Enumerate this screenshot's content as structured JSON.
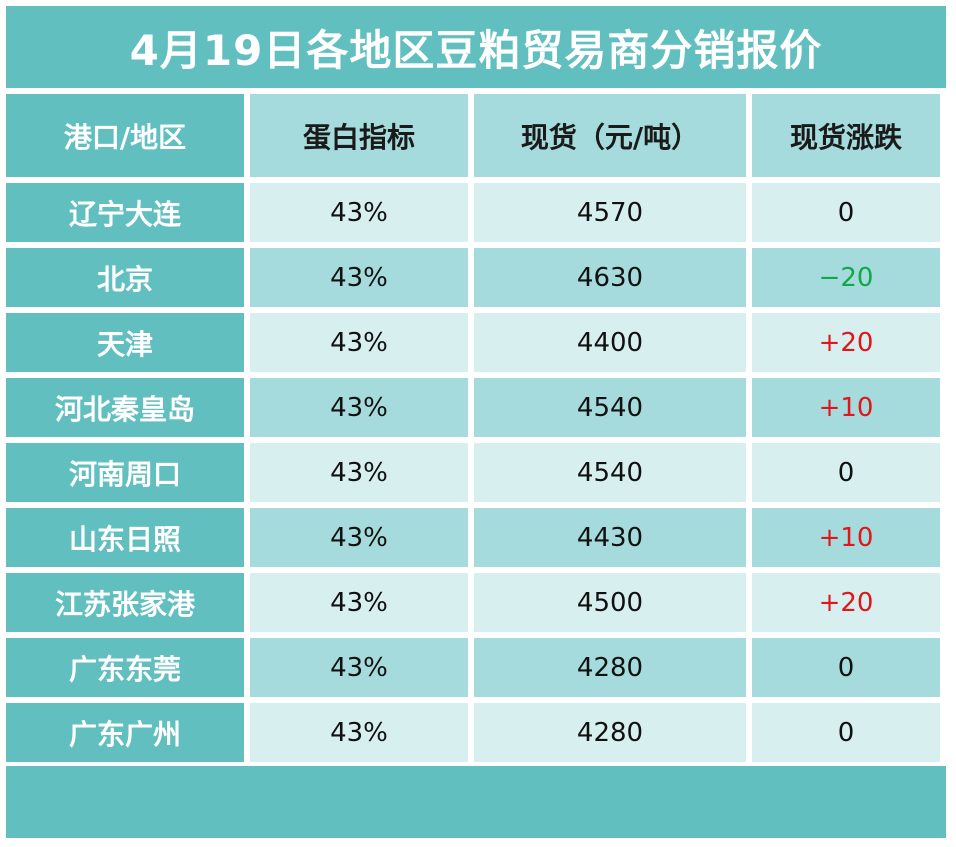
{
  "title": "4月19日各地区豆粕贸易商分销报价",
  "headers": [
    "港口/地区",
    "蛋白指标",
    "现货（元/吨）",
    "现货涨跌"
  ],
  "rows": [
    {
      "region": "辽宁大连",
      "protein": "43%",
      "price": "4570",
      "change": "0",
      "direction": "zero"
    },
    {
      "region": "北京",
      "protein": "43%",
      "price": "4630",
      "change": "−20",
      "direction": "down"
    },
    {
      "region": "天津",
      "protein": "43%",
      "price": "4400",
      "change": "+20",
      "direction": "up"
    },
    {
      "region": "河北秦皇岛",
      "protein": "43%",
      "price": "4540",
      "change": "+10",
      "direction": "up"
    },
    {
      "region": "河南周口",
      "protein": "43%",
      "price": "4540",
      "change": "0",
      "direction": "zero"
    },
    {
      "region": "山东日照",
      "protein": "43%",
      "price": "4430",
      "change": "+10",
      "direction": "up"
    },
    {
      "region": "江苏张家港",
      "protein": "43%",
      "price": "4500",
      "change": "+20",
      "direction": "up"
    },
    {
      "region": "广东东莞",
      "protein": "43%",
      "price": "4280",
      "change": "0",
      "direction": "zero"
    },
    {
      "region": "广东广州",
      "protein": "43%",
      "price": "4280",
      "change": "0",
      "direction": "zero"
    }
  ],
  "colors": {
    "teal": "#62bfc0",
    "teal_light": "#a5dbdc",
    "teal_pale": "#d8eff0",
    "up": "#e0161a",
    "down": "#12a84a"
  }
}
